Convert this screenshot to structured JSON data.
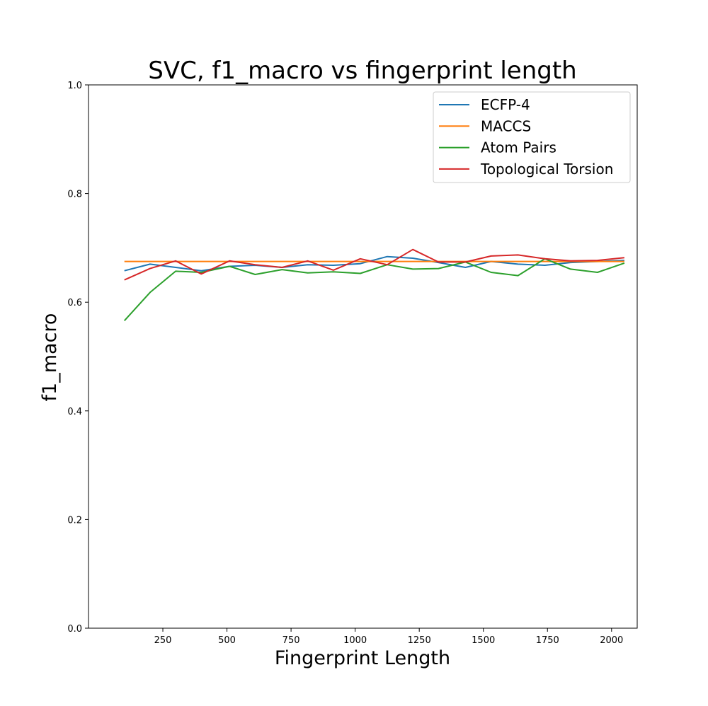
{
  "chart_data": {
    "type": "line",
    "title": "SVC, f1_macro vs fingerprint length",
    "xlabel": "Fingerprint Length",
    "ylabel": "f1_macro",
    "xlim": [
      -40,
      2100
    ],
    "ylim": [
      0.0,
      1.0
    ],
    "xticks": [
      250,
      500,
      750,
      1000,
      1250,
      1500,
      1750,
      2000
    ],
    "yticks": [
      0.0,
      0.2,
      0.4,
      0.6,
      0.8,
      1.0
    ],
    "xtick_labels": [
      "250",
      "500",
      "750",
      "1000",
      "1250",
      "1500",
      "1750",
      "2000"
    ],
    "ytick_labels": [
      "0.0",
      "0.2",
      "0.4",
      "0.6",
      "0.8",
      "1.0"
    ],
    "grid": false,
    "legend_position": "top-right",
    "x": [
      100,
      200,
      300,
      400,
      510,
      610,
      715,
      815,
      915,
      1020,
      1125,
      1225,
      1325,
      1430,
      1530,
      1635,
      1740,
      1840,
      1945,
      2050
    ],
    "series": [
      {
        "name": "ECFP-4",
        "color": "#1f77b4",
        "values": [
          0.658,
          0.67,
          0.664,
          0.658,
          0.666,
          0.668,
          0.664,
          0.669,
          0.668,
          0.671,
          0.684,
          0.681,
          0.673,
          0.664,
          0.675,
          0.67,
          0.668,
          0.673,
          0.675,
          0.677
        ]
      },
      {
        "name": "MACCS",
        "color": "#ff7f0e",
        "values": [
          0.675,
          0.675,
          0.675,
          0.675,
          0.675,
          0.675,
          0.675,
          0.675,
          0.675,
          0.675,
          0.675,
          0.675,
          0.675,
          0.675,
          0.675,
          0.675,
          0.675,
          0.675,
          0.675,
          0.675
        ]
      },
      {
        "name": "Atom Pairs",
        "color": "#2ca02c",
        "values": [
          0.566,
          0.618,
          0.657,
          0.655,
          0.666,
          0.651,
          0.66,
          0.654,
          0.656,
          0.653,
          0.669,
          0.661,
          0.662,
          0.674,
          0.655,
          0.649,
          0.68,
          0.661,
          0.655,
          0.672
        ]
      },
      {
        "name": "Topological Torsion",
        "color": "#d62728",
        "values": [
          0.641,
          0.662,
          0.676,
          0.652,
          0.676,
          0.669,
          0.664,
          0.676,
          0.659,
          0.68,
          0.669,
          0.697,
          0.674,
          0.674,
          0.685,
          0.687,
          0.68,
          0.676,
          0.677,
          0.682
        ]
      }
    ]
  }
}
